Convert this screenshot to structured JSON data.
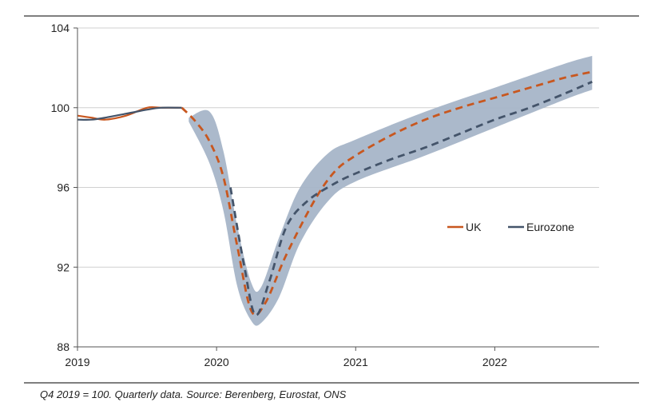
{
  "chart_data": {
    "type": "line",
    "title": "",
    "xlabel": "",
    "ylabel": "",
    "ylim": [
      88,
      104
    ],
    "xlim": [
      2019.0,
      2022.75
    ],
    "y_ticks": [
      {
        "value": 88,
        "label": "88"
      },
      {
        "value": 92,
        "label": "92"
      },
      {
        "value": 96,
        "label": "96"
      },
      {
        "value": 100,
        "label": "100"
      },
      {
        "value": 104,
        "label": "104"
      }
    ],
    "x_ticks": [
      {
        "value": 2019,
        "label": "2019"
      },
      {
        "value": 2020,
        "label": "2020"
      },
      {
        "value": 2021,
        "label": "2021"
      },
      {
        "value": 2022,
        "label": "2022"
      }
    ],
    "grid": "horizontal",
    "legend_position": "right-middle",
    "series": [
      {
        "name": "UK",
        "color": "#c8571f",
        "historical": {
          "x": [
            2019.0,
            2019.1,
            2019.2,
            2019.35,
            2019.5,
            2019.6,
            2019.75
          ],
          "y": [
            99.6,
            99.5,
            99.4,
            99.6,
            100.0,
            100.0,
            100.0
          ]
        },
        "forecast": {
          "x": [
            2019.75,
            2019.85,
            2019.95,
            2020.05,
            2020.15,
            2020.25,
            2020.35,
            2020.5,
            2020.7,
            2020.85,
            2021.0,
            2021.25,
            2021.5,
            2021.75,
            2022.0,
            2022.25,
            2022.5,
            2022.7
          ],
          "y": [
            100.0,
            99.3,
            98.3,
            96.5,
            93.0,
            89.8,
            90.2,
            92.6,
            95.3,
            96.8,
            97.6,
            98.6,
            99.4,
            100.0,
            100.5,
            101.0,
            101.5,
            101.8
          ]
        }
      },
      {
        "name": "Eurozone",
        "color": "#44546a",
        "historical": {
          "x": [
            2019.0,
            2019.1,
            2019.2,
            2019.35,
            2019.5,
            2019.6,
            2019.75
          ],
          "y": [
            99.4,
            99.4,
            99.5,
            99.7,
            99.9,
            100.0,
            100.0
          ]
        },
        "forecast": {
          "x": [
            2020.1,
            2020.2,
            2020.28,
            2020.38,
            2020.5,
            2020.65,
            2020.85,
            2021.0,
            2021.25,
            2021.5,
            2021.75,
            2022.0,
            2022.25,
            2022.5,
            2022.7
          ],
          "y": [
            96.0,
            92.0,
            89.6,
            91.3,
            94.0,
            95.3,
            96.2,
            96.7,
            97.4,
            98.0,
            98.7,
            99.4,
            100.0,
            100.7,
            101.3
          ]
        }
      }
    ],
    "uncertainty_band": {
      "color": "#a7b5c8",
      "x": [
        2019.8,
        2019.95,
        2020.05,
        2020.15,
        2020.25,
        2020.32,
        2020.45,
        2020.6,
        2020.8,
        2021.0,
        2021.5,
        2022.0,
        2022.5,
        2022.7
      ],
      "upper": [
        99.5,
        99.8,
        97.8,
        94.0,
        91.2,
        91.0,
        93.5,
        96.0,
        97.7,
        98.4,
        99.8,
        101.0,
        102.2,
        102.6
      ],
      "lower": [
        99.3,
        97.2,
        94.8,
        91.0,
        89.3,
        89.2,
        90.5,
        93.2,
        95.3,
        96.3,
        97.6,
        99.0,
        100.4,
        100.9
      ]
    },
    "footnote": "Q4 2019 = 100. Quarterly data. Source: Berenberg, Eurostat, ONS"
  }
}
